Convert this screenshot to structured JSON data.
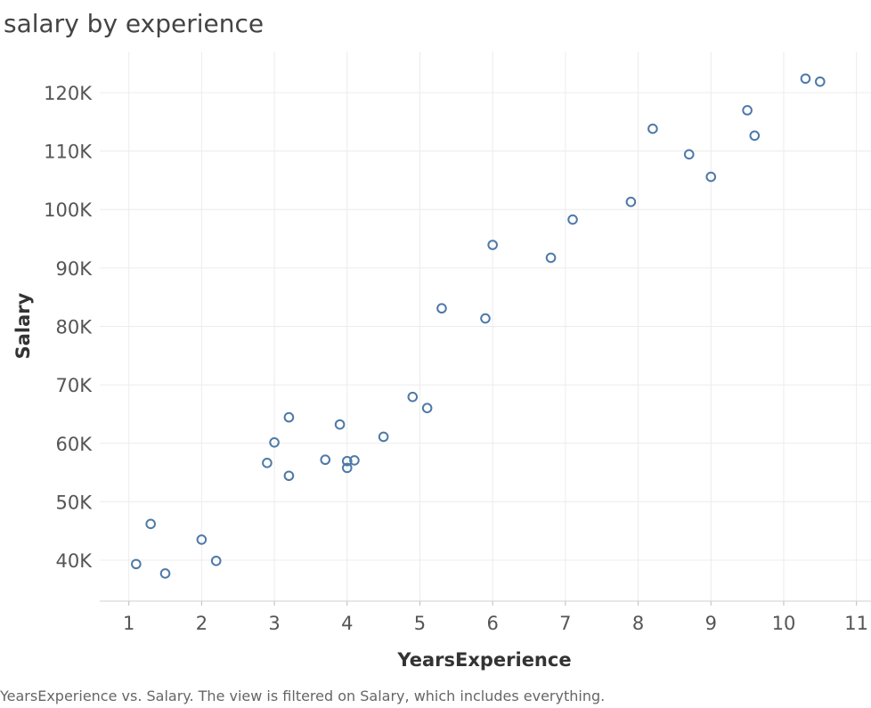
{
  "chart_data": {
    "type": "scatter",
    "title": "salary by experience",
    "caption": "YearsExperience vs. Salary. The view is filtered on Salary, which includes everything.",
    "xlabel": "YearsExperience",
    "ylabel": "Salary",
    "xlim": [
      0.6,
      11.2
    ],
    "ylim": [
      33000,
      127000
    ],
    "x_ticks": [
      1,
      2,
      3,
      4,
      5,
      6,
      7,
      8,
      9,
      10,
      11
    ],
    "x_tick_labels": [
      "1",
      "2",
      "3",
      "4",
      "5",
      "6",
      "7",
      "8",
      "9",
      "10",
      "11"
    ],
    "y_ticks": [
      40000,
      50000,
      60000,
      70000,
      80000,
      90000,
      100000,
      110000,
      120000
    ],
    "y_tick_labels": [
      "40K",
      "50K",
      "60K",
      "70K",
      "80K",
      "90K",
      "100K",
      "110K",
      "120K"
    ],
    "grid": true,
    "marker_color": "#4e79a7",
    "points": [
      {
        "x": 1.1,
        "y": 39343
      },
      {
        "x": 1.3,
        "y": 46205
      },
      {
        "x": 1.5,
        "y": 37731
      },
      {
        "x": 2.0,
        "y": 43525
      },
      {
        "x": 2.2,
        "y": 39891
      },
      {
        "x": 2.9,
        "y": 56642
      },
      {
        "x": 3.0,
        "y": 60150
      },
      {
        "x": 3.2,
        "y": 54445
      },
      {
        "x": 3.2,
        "y": 64445
      },
      {
        "x": 3.7,
        "y": 57189
      },
      {
        "x": 3.9,
        "y": 63218
      },
      {
        "x": 4.0,
        "y": 55794
      },
      {
        "x": 4.0,
        "y": 56957
      },
      {
        "x": 4.1,
        "y": 57081
      },
      {
        "x": 4.5,
        "y": 61111
      },
      {
        "x": 4.9,
        "y": 67938
      },
      {
        "x": 5.1,
        "y": 66029
      },
      {
        "x": 5.3,
        "y": 83088
      },
      {
        "x": 5.9,
        "y": 81363
      },
      {
        "x": 6.0,
        "y": 93940
      },
      {
        "x": 6.8,
        "y": 91738
      },
      {
        "x": 7.1,
        "y": 98273
      },
      {
        "x": 7.9,
        "y": 101302
      },
      {
        "x": 8.2,
        "y": 113812
      },
      {
        "x": 8.7,
        "y": 109431
      },
      {
        "x": 9.0,
        "y": 105582
      },
      {
        "x": 9.5,
        "y": 116969
      },
      {
        "x": 9.6,
        "y": 112635
      },
      {
        "x": 10.3,
        "y": 122391
      },
      {
        "x": 10.5,
        "y": 121872
      }
    ]
  }
}
